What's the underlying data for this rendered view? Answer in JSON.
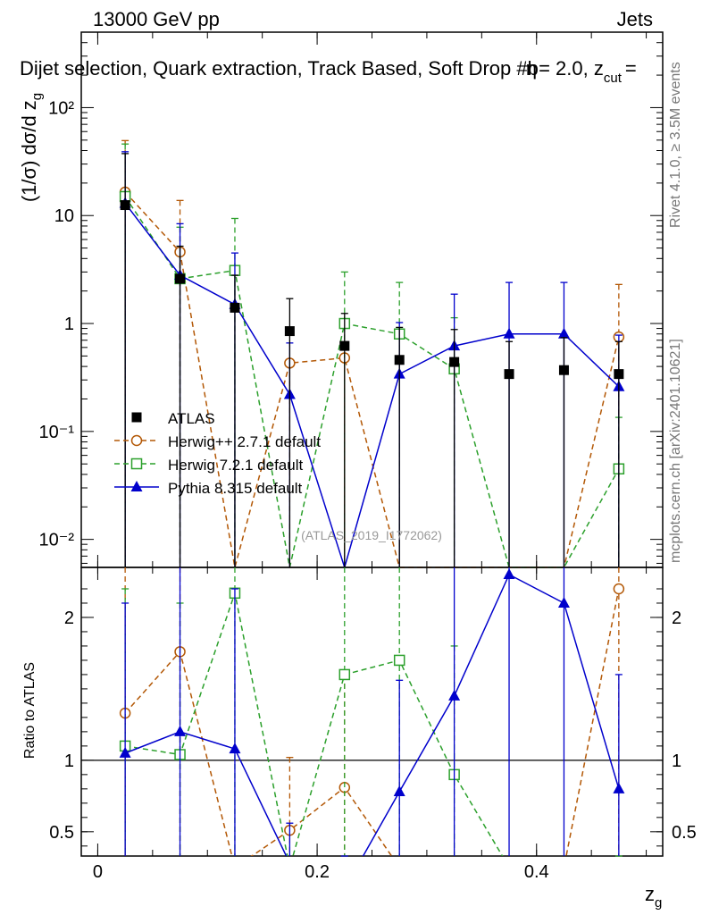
{
  "header": {
    "left": "13000 GeV pp",
    "right": "Jets",
    "title": "Dijet selection, Quark extraction, Track Based, Soft Drop #b",
    "title_suffix": "= 2.0, z",
    "title_sub": "cut",
    "title_end": "=",
    "overlap_glyph": "η"
  },
  "side_labels": {
    "rivet": "Rivet 4.1.0, ≥ 3.5M events",
    "mcplots": "mcplots.cern.ch [arXiv:2401.10621]"
  },
  "reference": "(ATLAS_2019_I1772062)",
  "axes": {
    "main_ylabel": "(1/σ) dσ/d z",
    "main_ylabel_sub": "g",
    "ratio_ylabel": "Ratio to ATLAS",
    "xlabel": "z",
    "xlabel_sub": "g"
  },
  "legend": [
    {
      "name": "ATLAS"
    },
    {
      "name": "Herwig++ 2.7.1 default"
    },
    {
      "name": "Herwig 7.2.1 default"
    },
    {
      "name": "Pythia 8.315 default"
    }
  ],
  "chart_data": {
    "type": "scatter",
    "xlim": [
      -0.015,
      0.515
    ],
    "main_ylim": [
      0.0055,
      500
    ],
    "main_yscale": "log",
    "ratio_ylim": [
      0.33,
      2.35
    ],
    "x": [
      0.025,
      0.075,
      0.125,
      0.175,
      0.225,
      0.275,
      0.325,
      0.375,
      0.425,
      0.475
    ],
    "x_ticks": [
      0,
      0.2,
      0.4
    ],
    "x_tick_labels": [
      "0",
      "0.2",
      "0.4"
    ],
    "main_y_ticks": [
      0.01,
      0.1,
      1,
      10,
      100
    ],
    "main_y_tick_labels": [
      "10⁻²",
      "10⁻¹",
      "1",
      "10",
      "10²"
    ],
    "ratio_y_ticks": [
      0.5,
      1,
      2
    ],
    "ratio_y_tick_labels": [
      "0.5",
      "1",
      "2"
    ],
    "series": [
      {
        "name": "ATLAS",
        "color": "#000000",
        "marker": "square-filled",
        "values": [
          12.5,
          2.6,
          1.4,
          0.85,
          0.62,
          0.46,
          0.44,
          0.34,
          0.37,
          0.34
        ],
        "err_up": [
          25,
          2.6,
          1.4,
          0.85,
          0.62,
          0.46,
          0.44,
          0.34,
          0.37,
          0.34
        ],
        "err_down": [
          12.5,
          2.6,
          1.4,
          0.85,
          0.62,
          0.46,
          0.44,
          0.34,
          0.37,
          0.34
        ]
      },
      {
        "name": "Herwig++ 2.7.1 default",
        "color": "#b35806",
        "marker": "circle-open",
        "dash": "6,4",
        "values": [
          16.5,
          4.6,
          0.005,
          0.43,
          0.48,
          0.005,
          0.005,
          0.001,
          0.001,
          0.75
        ],
        "err_up": [
          33,
          9.2,
          0.001,
          0.001,
          0.001,
          0.001,
          0.001,
          0.001,
          0.001,
          1.55
        ]
      },
      {
        "name": "Herwig 7.2.1 default",
        "color": "#2ca02c",
        "marker": "square-open",
        "dash": "6,4",
        "values": [
          15,
          2.6,
          3.1,
          0.005,
          1.0,
          0.8,
          0.38,
          0.005,
          0.005,
          0.045
        ],
        "err_up": [
          31,
          5.2,
          6.3,
          0.001,
          2.0,
          1.6,
          0.75,
          0.001,
          0.001,
          0.09
        ]
      },
      {
        "name": "Pythia 8.315 default",
        "color": "#0000cc",
        "marker": "triangle-filled",
        "values": [
          13,
          2.8,
          1.5,
          0.22,
          0.001,
          0.34,
          0.62,
          0.8,
          0.8,
          0.26
        ],
        "err_up": [
          26,
          5.6,
          3.0,
          0.44,
          0.001,
          0.68,
          1.25,
          1.6,
          1.6,
          0.52
        ]
      }
    ],
    "ratio_series": [
      {
        "name": "Herwig++ 2.7.1 default",
        "values": [
          1.33,
          1.76,
          0.25,
          0.51,
          0.81,
          0.25,
          0.25,
          0.25,
          0.25,
          2.2
        ],
        "err_up": [
          2.7,
          3.5,
          0,
          1.02,
          1.6,
          0,
          0,
          0,
          0,
          4.4
        ]
      },
      {
        "name": "Herwig 7.2.1 default",
        "values": [
          1.1,
          1.04,
          2.17,
          0.25,
          1.6,
          1.7,
          0.9,
          0.25,
          0.25,
          0.13
        ],
        "err_up": [
          2.2,
          2.1,
          4.3,
          0,
          3.2,
          3.4,
          1.8,
          0,
          0,
          0.26
        ]
      },
      {
        "name": "Pythia 8.315 default",
        "values": [
          1.05,
          1.2,
          1.08,
          0.28,
          0.1,
          0.78,
          1.45,
          2.3,
          2.1,
          0.8
        ],
        "err_up": [
          2.1,
          2.4,
          2.2,
          0.56,
          0.2,
          1.56,
          2.9,
          4.6,
          4.2,
          1.6
        ]
      }
    ]
  }
}
